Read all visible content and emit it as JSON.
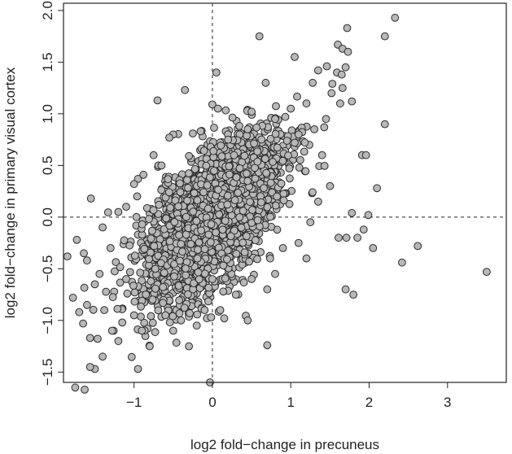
{
  "chart_data": {
    "type": "scatter",
    "xlabel": "log2 fold−change in precuneus",
    "ylabel": "log2 fold−change in primary visual cortex",
    "xlim": [
      -1.9,
      3.75
    ],
    "ylim": [
      -1.6,
      2.07
    ],
    "x_ticks": [
      {
        "value": -1,
        "label": "−1"
      },
      {
        "value": 0,
        "label": "0"
      },
      {
        "value": 1,
        "label": "1"
      },
      {
        "value": 2,
        "label": "2"
      },
      {
        "value": 3,
        "label": "3"
      }
    ],
    "y_ticks": [
      {
        "value": -1.5,
        "label": "−1.5"
      },
      {
        "value": -1.0,
        "label": "−1.0"
      },
      {
        "value": -0.5,
        "label": "−0.5"
      },
      {
        "value": 0.0,
        "label": "0.0"
      },
      {
        "value": 0.5,
        "label": "0.5"
      },
      {
        "value": 1.0,
        "label": "1.0"
      },
      {
        "value": 1.5,
        "label": "1.5"
      },
      {
        "value": 2.0,
        "label": "2.0"
      }
    ],
    "reference_lines": {
      "x": 0,
      "y": 0,
      "style": "dashed"
    },
    "grid": false,
    "legend": "none",
    "point_fill": "#b8b8b8",
    "point_stroke": "#2b2b2b",
    "series": [
      {
        "points": [
          [
            2.33,
            1.93
          ],
          [
            2.2,
            1.75
          ],
          [
            0.6,
            1.75
          ],
          [
            1.72,
            1.83
          ],
          [
            1.6,
            1.67
          ],
          [
            1.66,
            1.63
          ],
          [
            1.73,
            1.6
          ],
          [
            1.05,
            1.55
          ],
          [
            1.7,
            1.45
          ],
          [
            1.46,
            1.46
          ],
          [
            1.59,
            1.4
          ],
          [
            1.65,
            1.38
          ],
          [
            1.53,
            1.29
          ],
          [
            1.66,
            1.25
          ],
          [
            1.35,
            1.42
          ],
          [
            1.28,
            1.3
          ],
          [
            0.05,
            1.4
          ],
          [
            0.68,
            1.3
          ],
          [
            1.78,
            1.12
          ],
          [
            1.63,
            1.1
          ],
          [
            1.52,
            1.2
          ],
          [
            -0.35,
            1.23
          ],
          [
            -0.7,
            1.13
          ],
          [
            0.0,
            1.09
          ],
          [
            0.07,
            1.05
          ],
          [
            0.93,
            0.97
          ],
          [
            0.5,
            1.02
          ],
          [
            2.2,
            0.9
          ],
          [
            -0.5,
            0.8
          ],
          [
            -0.55,
            0.77
          ],
          [
            -0.15,
            0.83
          ],
          [
            -0.25,
            0.81
          ],
          [
            1.91,
            0.6
          ],
          [
            1.96,
            0.6
          ],
          [
            1.05,
            0.72
          ],
          [
            -0.95,
            0.37
          ],
          [
            -1.0,
            0.32
          ],
          [
            -0.88,
            0.41
          ],
          [
            -0.96,
            0.2
          ],
          [
            2.1,
            0.28
          ],
          [
            1.99,
            0.02
          ],
          [
            1.78,
            0.04
          ],
          [
            -1.55,
            0.18
          ],
          [
            -1.2,
            0.05
          ],
          [
            1.93,
            -0.12
          ],
          [
            1.61,
            -0.2
          ],
          [
            1.71,
            -0.2
          ],
          [
            2.05,
            -0.3
          ],
          [
            2.62,
            -0.28
          ],
          [
            3.5,
            -0.53
          ],
          [
            1.85,
            -0.2
          ],
          [
            2.42,
            -0.44
          ],
          [
            1.7,
            -0.7
          ],
          [
            1.8,
            -0.75
          ],
          [
            0.7,
            -1.24
          ],
          [
            -0.03,
            -1.6
          ],
          [
            -1.75,
            -1.65
          ],
          [
            -1.63,
            -1.67
          ],
          [
            -1.5,
            -1.47
          ],
          [
            -1.56,
            -1.45
          ],
          [
            -0.95,
            -1.47
          ],
          [
            -1.4,
            -1.35
          ],
          [
            -1.26,
            -1.1
          ],
          [
            -1.28,
            -1.1
          ],
          [
            -1.56,
            -1.17
          ],
          [
            -1.65,
            -1.03
          ],
          [
            -1.7,
            -0.92
          ],
          [
            -1.6,
            -0.85
          ],
          [
            -1.78,
            -0.78
          ],
          [
            -1.85,
            -0.38
          ],
          [
            -1.6,
            -0.42
          ],
          [
            -1.73,
            -0.22
          ],
          [
            -1.64,
            -0.35
          ],
          [
            -1.44,
            -0.55
          ],
          [
            -1.5,
            -0.65
          ],
          [
            -1.38,
            -0.9
          ],
          [
            -1.2,
            -1.2
          ],
          [
            -1.15,
            -1.02
          ],
          [
            -0.8,
            -1.25
          ],
          [
            -0.5,
            -1.1
          ],
          [
            -1.1,
            -0.6
          ],
          [
            -1.3,
            -0.3
          ],
          [
            -1.4,
            -0.1
          ],
          [
            -1.1,
            0.1
          ],
          [
            -0.75,
            0.6
          ],
          [
            -0.65,
            0.5
          ],
          [
            0.2,
            0.75
          ],
          [
            0.45,
            0.85
          ],
          [
            0.8,
            0.95
          ],
          [
            1.0,
            1.05
          ],
          [
            1.2,
            1.1
          ],
          [
            1.1,
            0.8
          ],
          [
            1.3,
            0.85
          ],
          [
            1.45,
            0.95
          ],
          [
            1.4,
            0.6
          ],
          [
            1.5,
            0.3
          ],
          [
            1.35,
            0.15
          ],
          [
            1.25,
            -0.05
          ],
          [
            1.1,
            -0.25
          ],
          [
            0.9,
            -0.3
          ],
          [
            1.2,
            -0.4
          ],
          [
            0.5,
            -0.6
          ],
          [
            0.7,
            -0.7
          ],
          [
            0.3,
            -0.75
          ],
          [
            0.1,
            -0.9
          ],
          [
            -0.2,
            -1.05
          ],
          [
            -0.4,
            -1.0
          ],
          [
            -0.1,
            -0.9
          ],
          [
            0.0,
            -0.6
          ],
          [
            -0.6,
            -0.95
          ],
          [
            -1.0,
            -0.95
          ],
          [
            -0.9,
            -1.1
          ],
          [
            -0.3,
            -1.25
          ],
          [
            0.45,
            -1.0
          ],
          [
            0.8,
            -0.55
          ]
        ]
      }
    ],
    "dense_core": {
      "count": 3000,
      "mean": [
        0.0,
        0.0
      ],
      "sd_major": 0.5,
      "sd_minor": 0.25,
      "angle_deg": 40
    }
  }
}
